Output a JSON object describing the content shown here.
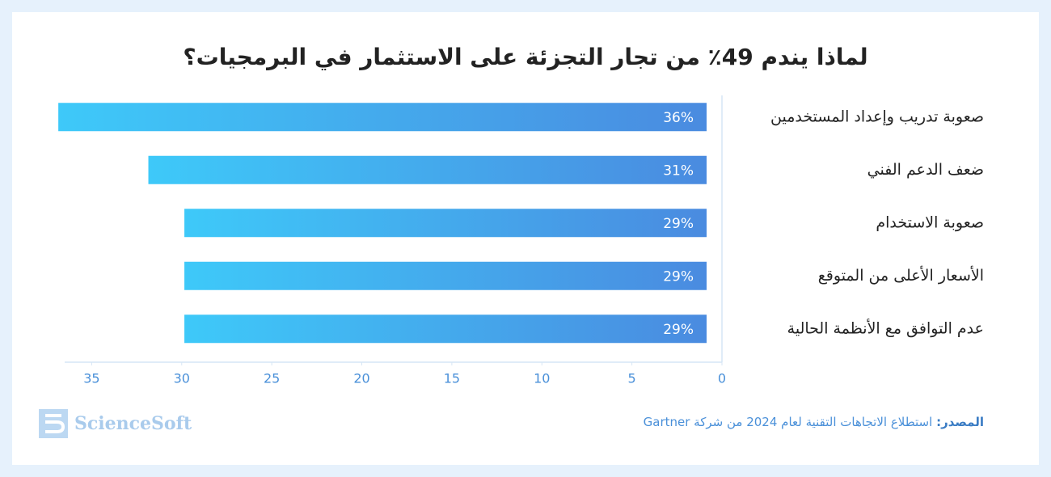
{
  "chart_data": {
    "type": "hbar",
    "title": "لماذا يندم 49٪ من تجار التجزئة على الاستثمار في البرمجيات؟",
    "categories": [
      "صعوبة تدريب وإعداد المستخدمين",
      "ضعف الدعم الفني",
      "صعوبة الاستخدام",
      "الأسعار الأعلى من المتوقع",
      "عدم التوافق مع الأنظمة الحالية"
    ],
    "values": [
      36,
      31,
      29,
      29,
      29
    ],
    "value_labels": [
      "36%",
      "31%",
      "29%",
      "29%",
      "29%"
    ],
    "gradient": [
      "#3ec9f9",
      "#4a8be0"
    ],
    "xlim": [
      0,
      36.5
    ],
    "xticks": [
      0,
      5,
      10,
      15,
      20,
      25,
      30,
      35
    ],
    "x_reversed": true,
    "source_label": "المصدر:",
    "source_text": "استطلاع الاتجاهات التقنية لعام 2024 من شركة Gartner",
    "logo": "ScienceSoft"
  }
}
